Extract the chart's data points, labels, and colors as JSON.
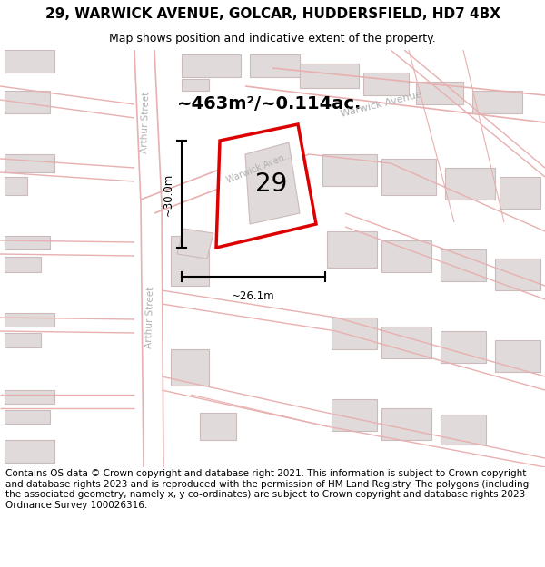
{
  "title": "29, WARWICK AVENUE, GOLCAR, HUDDERSFIELD, HD7 4BX",
  "subtitle": "Map shows position and indicative extent of the property.",
  "footer": "Contains OS data © Crown copyright and database right 2021. This information is subject to Crown copyright and database rights 2023 and is reproduced with the permission of HM Land Registry. The polygons (including the associated geometry, namely x, y co-ordinates) are subject to Crown copyright and database rights 2023 Ordnance Survey 100026316.",
  "area_label": "~463m²/~0.114ac.",
  "number_label": "29",
  "dim_width": "~26.1m",
  "dim_height": "~30.0m",
  "map_bg": "#ffffff",
  "road_line_color": "#e8b0b0",
  "building_fill": "#e0dada",
  "building_edge": "#ccbbbb",
  "highlight_fill": "#ffffff",
  "highlight_edge": "#dd0000",
  "street_label_color": "#b0b0b0",
  "title_fontsize": 11,
  "subtitle_fontsize": 9,
  "footer_fontsize": 7.5,
  "dim_fontsize": 8.5,
  "area_fontsize": 14,
  "number_fontsize": 20
}
